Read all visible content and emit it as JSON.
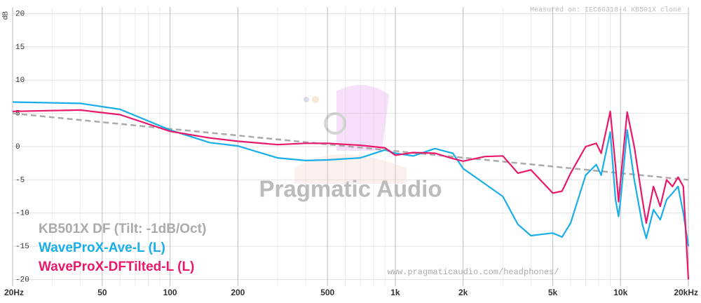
{
  "chart_data": {
    "type": "line",
    "y_label": "dB",
    "note": "Measured on: IEC60318-4 KB501X clone",
    "watermark": "Pragmatic Audio",
    "url": "www.pragmaticaudio.com/headphones/",
    "xscale": "log",
    "xlim": [
      20,
      20000
    ],
    "ylim": [
      -21,
      21
    ],
    "xticks": [
      {
        "value": 20,
        "label": "20Hz"
      },
      50,
      100,
      200,
      500,
      {
        "value": 1000,
        "label": "1k"
      },
      {
        "value": 2000,
        "label": "2k"
      },
      {
        "value": 5000,
        "label": "5k"
      },
      {
        "value": 10000,
        "label": "10k"
      },
      {
        "value": 20000,
        "label": "20kHz"
      }
    ],
    "x_minor_ticks": [
      30,
      40,
      60,
      70,
      80,
      90,
      300,
      400,
      600,
      700,
      800,
      900,
      3000,
      4000,
      6000,
      7000,
      8000,
      9000
    ],
    "yticks": [
      20,
      15,
      10,
      5,
      0,
      -5,
      -10,
      -15,
      -20
    ],
    "grid": true,
    "x": [
      20,
      40,
      60,
      100,
      150,
      200,
      300,
      400,
      500,
      700,
      900,
      1000,
      1200,
      1500,
      1800,
      2000,
      2500,
      3000,
      3500,
      4000,
      5000,
      5500,
      6000,
      7000,
      7800,
      8200,
      9000,
      9500,
      9800,
      10000,
      10700,
      11500,
      12500,
      13000,
      14000,
      15000,
      16000,
      17000,
      18000,
      19000,
      20000
    ],
    "series": [
      {
        "name": "KB501X DF (Tilt: -1dB/Oct)",
        "color": "#aaaaaa",
        "dashed": true,
        "x": [
          20,
          20000
        ],
        "values": [
          5,
          -5
        ]
      },
      {
        "name": "WaveProX-Ave-L (L)",
        "color": "#1aaee8",
        "values": [
          6.7,
          6.5,
          5.6,
          2.5,
          0.6,
          0.1,
          -1.7,
          -2.1,
          -2.0,
          -1.7,
          -0.5,
          -1.0,
          -1.4,
          -0.3,
          -1.0,
          -3.3,
          -5.6,
          -7.5,
          -11.7,
          -13.4,
          -13.0,
          -13.6,
          -11.5,
          -4.3,
          -2.7,
          -4.3,
          2.2,
          -8.0,
          -10.5,
          -8.0,
          2.5,
          -5.0,
          -11.7,
          -13.8,
          -9.5,
          -11.0,
          -8.0,
          -7.0,
          -6.0,
          -10.0,
          -15.0
        ]
      },
      {
        "name": "WaveProX-DFTilted-L (L)",
        "color": "#e8196b",
        "values": [
          5.3,
          5.5,
          4.8,
          2.3,
          1.3,
          0.8,
          0.3,
          0.5,
          0.5,
          0.2,
          -0.2,
          -1.3,
          -0.9,
          -1.0,
          -1.8,
          -2.2,
          -1.5,
          -1.4,
          -4.0,
          -3.5,
          -7.0,
          -6.7,
          -4.0,
          0.0,
          0.5,
          -1.0,
          5.3,
          -3.0,
          -8.3,
          -5.0,
          5.2,
          0.0,
          -8.0,
          -11.5,
          -6.0,
          -9.0,
          -5.0,
          -6.0,
          -4.6,
          -6.0,
          -20.0
        ]
      }
    ]
  }
}
